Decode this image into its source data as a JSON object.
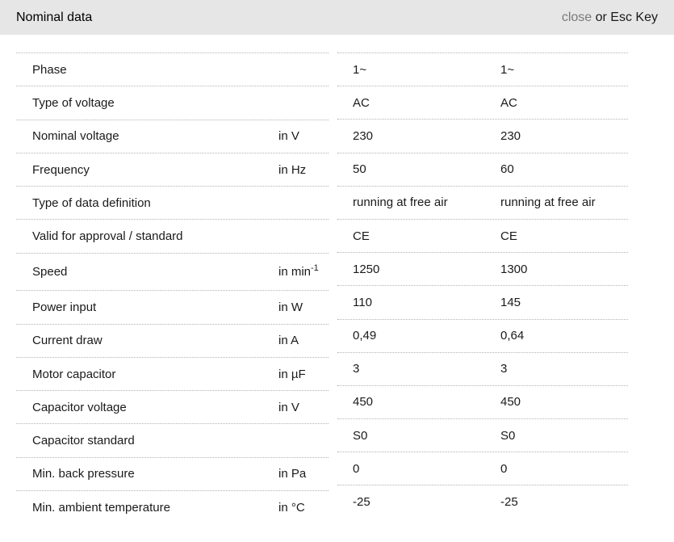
{
  "header": {
    "title": "Nominal data",
    "close_label": "close",
    "close_suffix": " or Esc Key"
  },
  "colors": {
    "header_bar_bg": "#e6e6e6",
    "close_link": "#7a7a7a",
    "text": "#1a1a1a",
    "separator": "#b3b3b3"
  },
  "table": {
    "rows": [
      {
        "label": "Phase",
        "unit": "",
        "unit_sup": "",
        "values": [
          "1~",
          "1~"
        ]
      },
      {
        "label": "Type of voltage",
        "unit": "",
        "unit_sup": "",
        "values": [
          "AC",
          "AC"
        ]
      },
      {
        "label": "Nominal voltage",
        "unit": "in V",
        "unit_sup": "",
        "values": [
          "230",
          "230"
        ]
      },
      {
        "label": "Frequency",
        "unit": "in Hz",
        "unit_sup": "",
        "values": [
          "50",
          "60"
        ]
      },
      {
        "label": "Type of data definition",
        "unit": "",
        "unit_sup": "",
        "values": [
          "running at free air",
          "running at free air"
        ]
      },
      {
        "label": "Valid for approval / standard",
        "unit": "",
        "unit_sup": "",
        "values": [
          "CE",
          "CE"
        ]
      },
      {
        "label": "Speed",
        "unit": "in min",
        "unit_sup": "-1",
        "values": [
          "1250",
          "1300"
        ]
      },
      {
        "label": "Power input",
        "unit": "in W",
        "unit_sup": "",
        "values": [
          "110",
          "145"
        ]
      },
      {
        "label": "Current draw",
        "unit": "in A",
        "unit_sup": "",
        "values": [
          "0,49",
          "0,64"
        ]
      },
      {
        "label": "Motor capacitor",
        "unit": "in µF",
        "unit_sup": "",
        "values": [
          "3",
          "3"
        ]
      },
      {
        "label": "Capacitor voltage",
        "unit": "in V",
        "unit_sup": "",
        "values": [
          "450",
          "450"
        ]
      },
      {
        "label": "Capacitor standard",
        "unit": "",
        "unit_sup": "",
        "values": [
          "S0",
          "S0"
        ]
      },
      {
        "label": "Min. back pressure",
        "unit": "in Pa",
        "unit_sup": "",
        "values": [
          "0",
          "0"
        ]
      },
      {
        "label": "Min. ambient temperature",
        "unit": "in °C",
        "unit_sup": "",
        "values": [
          "-25",
          "-25"
        ]
      }
    ]
  }
}
